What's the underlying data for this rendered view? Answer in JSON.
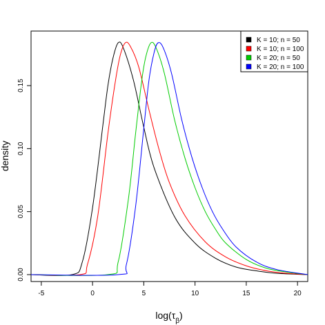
{
  "chart_data": {
    "type": "line",
    "title": "",
    "xlabel": "log(τ",
    "xlabel_sub": "β",
    "xlabel_close": ")",
    "ylabel": "density",
    "xlim": [
      -6,
      21
    ],
    "ylim": [
      0,
      0.184
    ],
    "x_ticks": [
      -5,
      0,
      5,
      10,
      15,
      20
    ],
    "x_tick_labels": [
      "-5",
      "0",
      "5",
      "10",
      "15",
      "20"
    ],
    "y_ticks": [
      0.0,
      0.05,
      0.1,
      0.15
    ],
    "y_tick_labels": [
      "0.00",
      "0.05",
      "0.10",
      "0.15"
    ],
    "grid": false,
    "legend_position": "top-right",
    "series": [
      {
        "name": "K = 10; n = 50",
        "color": "#000000",
        "x": [
          -6,
          -2,
          -1,
          0,
          1,
          1.5,
          2,
          2.5,
          3,
          4,
          5,
          6,
          8,
          10,
          12,
          14,
          16,
          18,
          21
        ],
        "y": [
          0.0,
          0.0,
          0.01,
          0.053,
          0.118,
          0.15,
          0.172,
          0.184,
          0.18,
          0.154,
          0.117,
          0.085,
          0.046,
          0.025,
          0.013,
          0.006,
          0.003,
          0.001,
          0.0
        ]
      },
      {
        "name": "K = 10; n = 100",
        "color": "#ff0000",
        "x": [
          -6,
          -1.2,
          -0.5,
          0.5,
          1.5,
          2.2,
          2.7,
          3.2,
          3.7,
          4.5,
          5.5,
          6.5,
          7.5,
          9,
          11,
          13,
          15,
          17,
          19,
          21
        ],
        "y": [
          0.0,
          0.0,
          0.008,
          0.046,
          0.112,
          0.152,
          0.174,
          0.184,
          0.181,
          0.165,
          0.131,
          0.099,
          0.073,
          0.047,
          0.026,
          0.014,
          0.007,
          0.003,
          0.001,
          0.0
        ]
      },
      {
        "name": "K = 20; n = 50",
        "color": "#00cc00",
        "x": [
          -6,
          1.5,
          2.5,
          3.5,
          4.2,
          4.8,
          5.2,
          5.7,
          6.2,
          7,
          8,
          9,
          10,
          11,
          12,
          13,
          15,
          17,
          19,
          21
        ],
        "y": [
          0.0,
          0.0,
          0.01,
          0.06,
          0.112,
          0.154,
          0.173,
          0.184,
          0.18,
          0.16,
          0.123,
          0.093,
          0.069,
          0.05,
          0.036,
          0.025,
          0.012,
          0.005,
          0.002,
          0.0
        ]
      },
      {
        "name": "K = 20; n = 100",
        "color": "#0000ff",
        "x": [
          -6,
          2.5,
          3.3,
          4.2,
          5.0,
          5.5,
          6.0,
          6.4,
          6.9,
          7.7,
          8.7,
          9.7,
          10.7,
          11.7,
          12.7,
          14,
          16,
          18,
          21
        ],
        "y": [
          0.0,
          0.0,
          0.008,
          0.054,
          0.116,
          0.154,
          0.176,
          0.184,
          0.18,
          0.16,
          0.123,
          0.093,
          0.069,
          0.05,
          0.036,
          0.022,
          0.01,
          0.004,
          0.0
        ]
      }
    ]
  }
}
